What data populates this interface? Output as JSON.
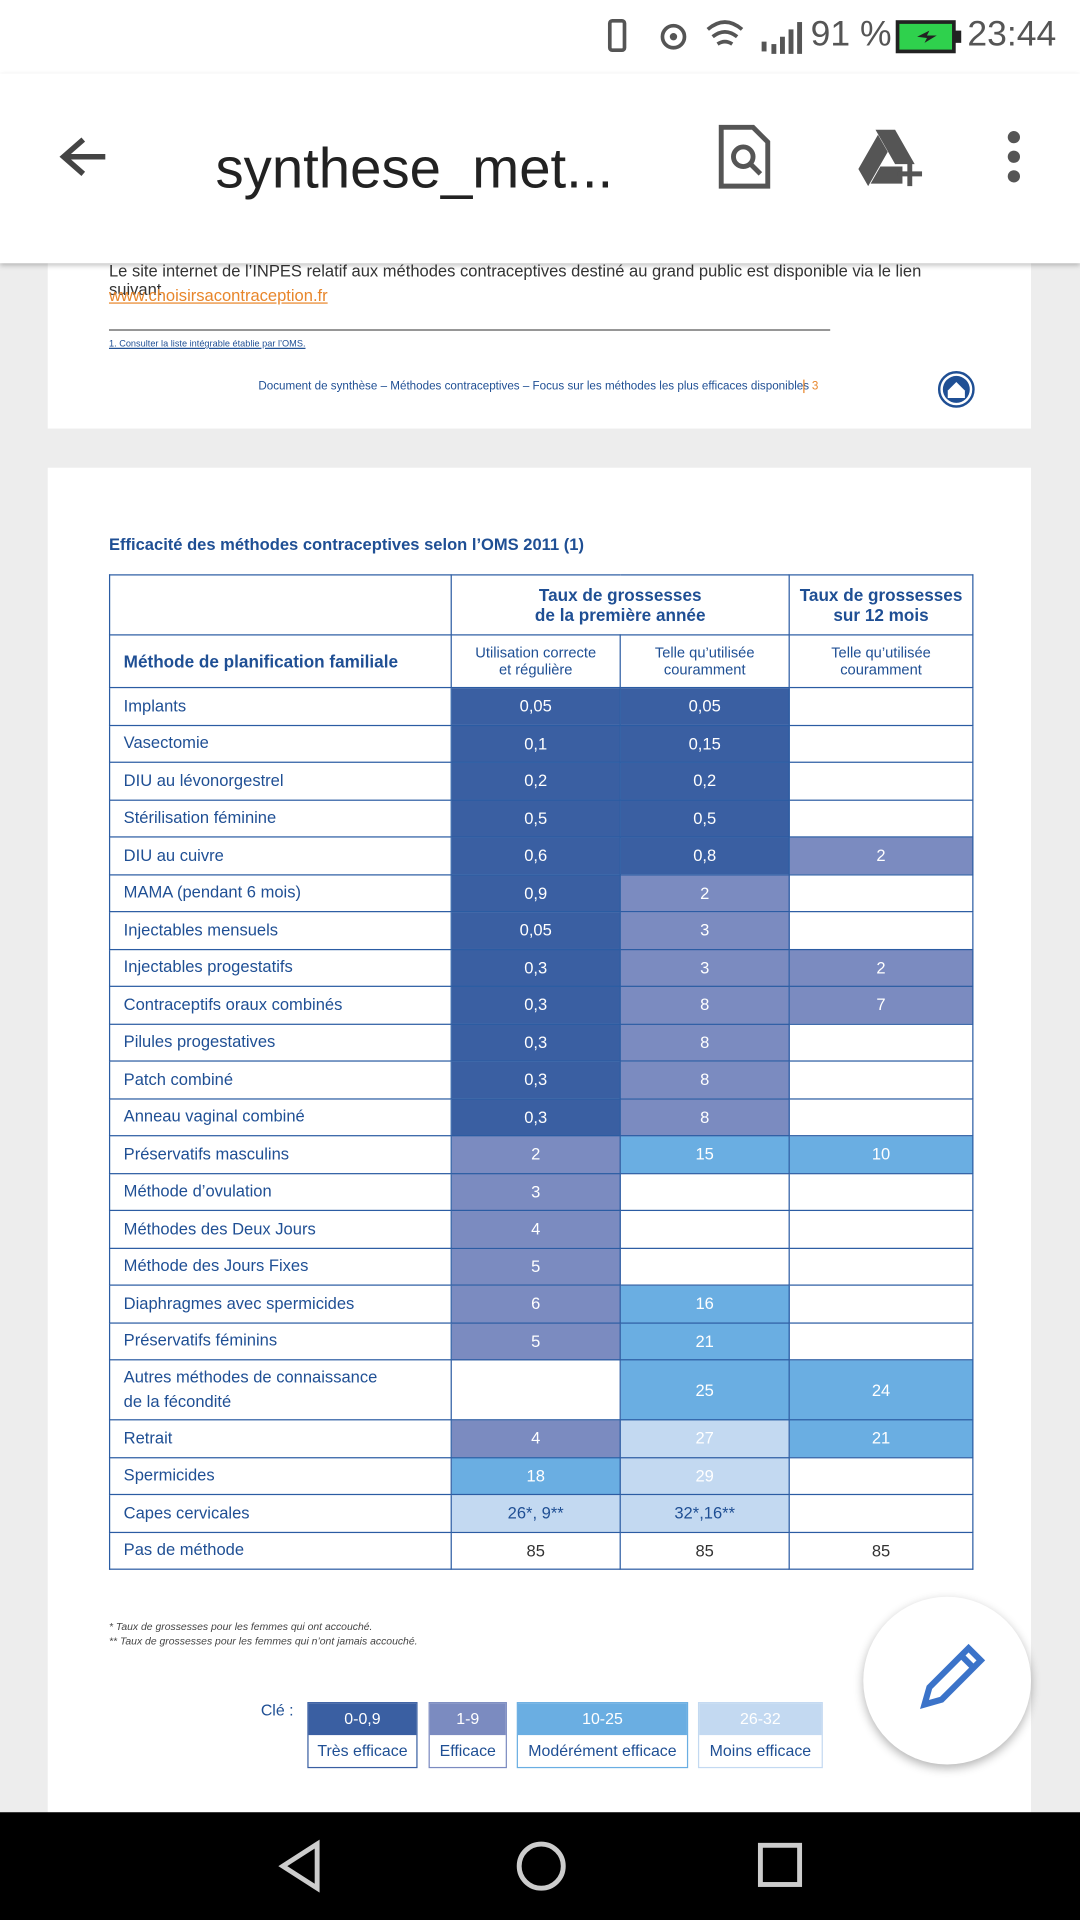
{
  "status_bar": {
    "battery": "91 %",
    "time": "23:44"
  },
  "toolbar": {
    "title": "synthese_met..."
  },
  "page_top": {
    "text": "Le site internet de l’INPES relatif aux méthodes contraceptives destiné au grand public est disponible via le lien suivant",
    "link": "www.choisirsacontraception.fr",
    "footnote": "1. Consulter la liste intégrable établie par l’OMS.",
    "footer": "Document de synthèse – Méthodes contraceptives – Focus sur les méthodes les plus efficaces disponibles",
    "page_number": "3"
  },
  "table": {
    "title": "Efficacité des méthodes contraceptives selon l’OMS 2011 (1)",
    "group_headers": [
      "Taux de grossesses\nde la première année",
      "Taux de grossesses\nsur 12 mois"
    ],
    "method_header": "Méthode de planification familiale",
    "sub_headers": [
      "Utilisation correcte\net régulière",
      "Telle qu’utilisée\ncouramment",
      "Telle qu’utilisée\ncouramment"
    ],
    "rows": [
      {
        "label": "Implants",
        "cells": [
          {
            "text": "0,05",
            "level": 0
          },
          {
            "text": "0,05",
            "level": 0
          },
          null
        ]
      },
      {
        "label": "Vasectomie",
        "cells": [
          {
            "text": "0,1",
            "level": 0
          },
          {
            "text": "0,15",
            "level": 0
          },
          null
        ]
      },
      {
        "label": "DIU au lévonorgestrel",
        "cells": [
          {
            "text": "0,2",
            "level": 0
          },
          {
            "text": "0,2",
            "level": 0
          },
          null
        ]
      },
      {
        "label": "Stérilisation féminine",
        "cells": [
          {
            "text": "0,5",
            "level": 0
          },
          {
            "text": "0,5",
            "level": 0
          },
          null
        ]
      },
      {
        "label": "DIU au cuivre",
        "cells": [
          {
            "text": "0,6",
            "level": 0
          },
          {
            "text": "0,8",
            "level": 0
          },
          {
            "text": "2",
            "level": 1
          }
        ]
      },
      {
        "label": "MAMA (pendant 6 mois)",
        "cells": [
          {
            "text": "0,9",
            "level": 0
          },
          {
            "text": "2",
            "level": 1
          },
          null
        ]
      },
      {
        "label": "Injectables mensuels",
        "cells": [
          {
            "text": "0,05",
            "level": 0
          },
          {
            "text": "3",
            "level": 1
          },
          null
        ]
      },
      {
        "label": "Injectables progestatifs",
        "cells": [
          {
            "text": "0,3",
            "level": 0
          },
          {
            "text": "3",
            "level": 1
          },
          {
            "text": "2",
            "level": 1
          }
        ]
      },
      {
        "label": "Contraceptifs oraux combinés",
        "cells": [
          {
            "text": "0,3",
            "level": 0
          },
          {
            "text": "8",
            "level": 1
          },
          {
            "text": "7",
            "level": 1
          }
        ]
      },
      {
        "label": "Pilules progestatives",
        "cells": [
          {
            "text": "0,3",
            "level": 0
          },
          {
            "text": "8",
            "level": 1
          },
          null
        ]
      },
      {
        "label": "Patch combiné",
        "cells": [
          {
            "text": "0,3",
            "level": 0
          },
          {
            "text": "8",
            "level": 1
          },
          null
        ]
      },
      {
        "label": "Anneau vaginal combiné",
        "cells": [
          {
            "text": "0,3",
            "level": 0
          },
          {
            "text": "8",
            "level": 1
          },
          null
        ]
      },
      {
        "label": "Préservatifs masculins",
        "cells": [
          {
            "text": "2",
            "level": 1
          },
          {
            "text": "15",
            "level": 2
          },
          {
            "text": "10",
            "level": 2
          }
        ]
      },
      {
        "label": "Méthode d’ovulation",
        "cells": [
          {
            "text": "3",
            "level": 1
          },
          null,
          null
        ]
      },
      {
        "label": "Méthodes des Deux Jours",
        "cells": [
          {
            "text": "4",
            "level": 1
          },
          null,
          null
        ]
      },
      {
        "label": "Méthode des Jours Fixes",
        "cells": [
          {
            "text": "5",
            "level": 1
          },
          null,
          null
        ]
      },
      {
        "label": "Diaphragmes avec spermicides",
        "cells": [
          {
            "text": "6",
            "level": 1
          },
          {
            "text": "16",
            "level": 2
          },
          null
        ]
      },
      {
        "label": "Préservatifs féminins",
        "cells": [
          {
            "text": "5",
            "level": 1
          },
          {
            "text": "21",
            "level": 2
          },
          null
        ]
      },
      {
        "label": "Autres méthodes de connaissance\nde la fécondité",
        "cells": [
          null,
          {
            "text": "25",
            "level": 2
          },
          {
            "text": "24",
            "level": 2
          }
        ]
      },
      {
        "label": "Retrait",
        "cells": [
          {
            "text": "4",
            "level": 1
          },
          {
            "text": "27",
            "level": 3
          },
          {
            "text": "21",
            "level": 2
          }
        ]
      },
      {
        "label": "Spermicides",
        "cells": [
          {
            "text": "18",
            "level": 2
          },
          {
            "text": "29",
            "level": 3
          },
          null
        ]
      },
      {
        "label": "Capes cervicales",
        "cells": [
          {
            "text": "26*, 9**",
            "level": 3
          },
          {
            "text": "32*,16**",
            "level": 3
          },
          null
        ]
      },
      {
        "label": "Pas de méthode",
        "cells": [
          {
            "text": "85",
            "level": null
          },
          {
            "text": "85",
            "level": null
          },
          {
            "text": "85",
            "level": null
          }
        ]
      }
    ],
    "footnotes": [
      "* Taux de grossesses pour les femmes qui ont accouché.",
      "** Taux de grossesses pour les femmes qui n’ont jamais accouché."
    ]
  },
  "key": {
    "label": "Clé :",
    "items": [
      {
        "range": "0-0,9",
        "label": "Très efficace",
        "color": "#3a5fa2"
      },
      {
        "range": "1-9",
        "label": "Efficace",
        "color": "#7b8bc0"
      },
      {
        "range": "10-25",
        "label": "Modérément efficace",
        "color": "#6aaee2"
      },
      {
        "range": "26-32",
        "label": "Moins efficace",
        "color": "#c3d9f1"
      }
    ]
  }
}
